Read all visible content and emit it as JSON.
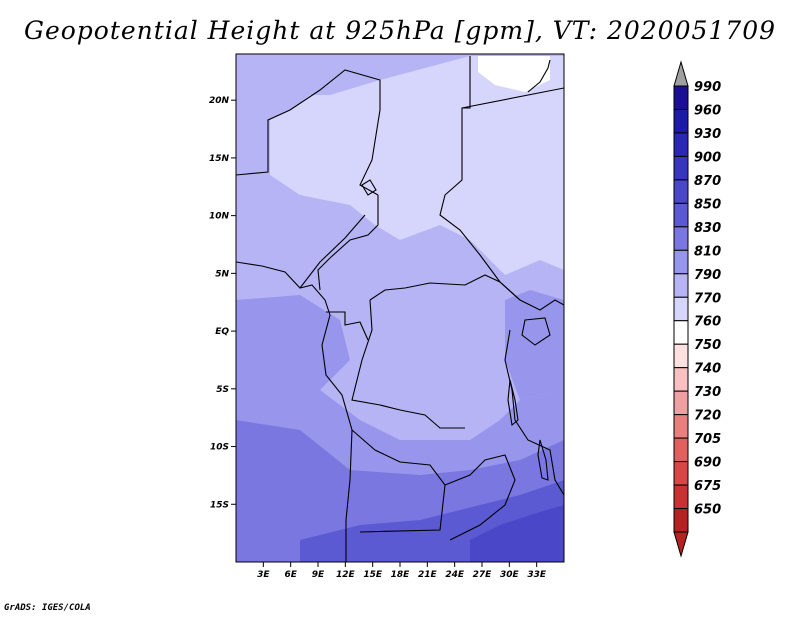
{
  "title": "Geopotential Height at 925hPa [gpm], VT: 2020051709",
  "credit": "GrADS: IGES/COLA",
  "map": {
    "lon_range": [
      0,
      36
    ],
    "lat_range": [
      -20,
      24
    ],
    "lat_ticks": [
      {
        "value": 20,
        "label": "20N"
      },
      {
        "value": 15,
        "label": "15N"
      },
      {
        "value": 10,
        "label": "10N"
      },
      {
        "value": 5,
        "label": "5N"
      },
      {
        "value": 0,
        "label": "EQ"
      },
      {
        "value": -5,
        "label": "5S"
      },
      {
        "value": -10,
        "label": "10S"
      },
      {
        "value": -15,
        "label": "15S"
      }
    ],
    "lon_ticks": [
      {
        "value": 3,
        "label": "3E"
      },
      {
        "value": 6,
        "label": "6E"
      },
      {
        "value": 9,
        "label": "9E"
      },
      {
        "value": 12,
        "label": "12E"
      },
      {
        "value": 15,
        "label": "15E"
      },
      {
        "value": 18,
        "label": "18E"
      },
      {
        "value": 21,
        "label": "21E"
      },
      {
        "value": 24,
        "label": "24E"
      },
      {
        "value": 27,
        "label": "27E"
      },
      {
        "value": 30,
        "label": "30E"
      },
      {
        "value": 33,
        "label": "33E"
      }
    ]
  },
  "colorbar": {
    "levels": [
      {
        "label": "990",
        "color": "#1c0f96"
      },
      {
        "label": "960",
        "color": "#1e1aa8"
      },
      {
        "label": "930",
        "color": "#2a28b4"
      },
      {
        "label": "900",
        "color": "#3836be"
      },
      {
        "label": "870",
        "color": "#4a48c8"
      },
      {
        "label": "850",
        "color": "#5c5ad2"
      },
      {
        "label": "830",
        "color": "#7a78e0"
      },
      {
        "label": "810",
        "color": "#9896ec"
      },
      {
        "label": "790",
        "color": "#b6b4f4"
      },
      {
        "label": "770",
        "color": "#d6d6fc"
      },
      {
        "label": "760",
        "color": "#ffffff"
      },
      {
        "label": "750",
        "color": "#fde0e0"
      },
      {
        "label": "740",
        "color": "#f8c0c0"
      },
      {
        "label": "730",
        "color": "#f0a0a0"
      },
      {
        "label": "720",
        "color": "#e88080"
      },
      {
        "label": "705",
        "color": "#e06060"
      },
      {
        "label": "690",
        "color": "#d84646"
      },
      {
        "label": "675",
        "color": "#c83232"
      },
      {
        "label": "650",
        "color": "#b42222"
      }
    ],
    "top_triangle_color": "#a0a0a0",
    "bottom_triangle_color": "#b42222"
  }
}
